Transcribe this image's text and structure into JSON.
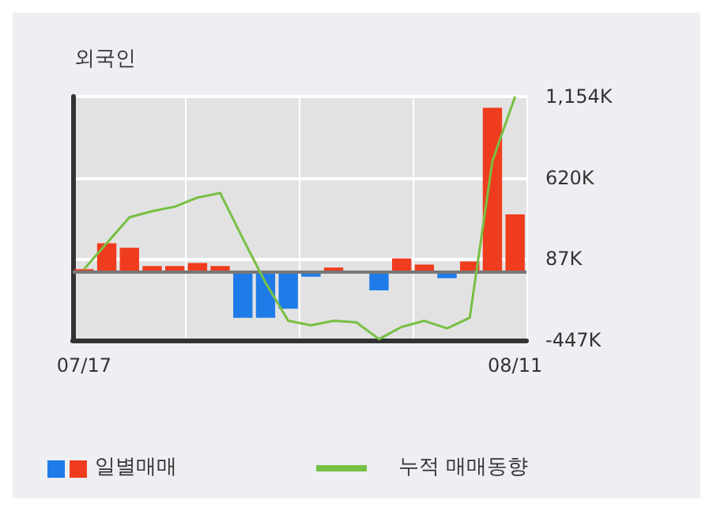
{
  "chart_data": {
    "type": "bar",
    "title": "외국인",
    "categories": [
      "07/17",
      null,
      null,
      null,
      null,
      null,
      null,
      null,
      null,
      null,
      null,
      null,
      null,
      null,
      null,
      null,
      null,
      null,
      null,
      "08/11"
    ],
    "series": [
      {
        "name": "일별매매",
        "colors": [
          "#f03c1e",
          "#f03c1e",
          "#f03c1e",
          "#f03c1e",
          "#f03c1e",
          "#f03c1e",
          "#f03c1e",
          "#1f7be8",
          "#1f7be8",
          "#1f7be8",
          "#1f7be8",
          "#f03c1e",
          "#f03c1e",
          "#1f7be8",
          "#f03c1e",
          "#f03c1e",
          "#1f7be8",
          "#f03c1e",
          "#f03c1e",
          "#f03c1e"
        ],
        "values": [
          20,
          190,
          160,
          40,
          40,
          60,
          40,
          -300,
          -300,
          -240,
          -30,
          30,
          0,
          -120,
          90,
          50,
          -40,
          70,
          1080,
          380
        ]
      },
      {
        "name": "누적 매매동향",
        "type": "line",
        "color": "#77c043",
        "values": [
          20,
          190,
          360,
          400,
          430,
          490,
          520,
          220,
          -70,
          -320,
          -350,
          -320,
          -330,
          -440,
          -360,
          -320,
          -370,
          -300,
          730,
          1154
        ]
      }
    ],
    "ylim": [
      -447,
      1154
    ],
    "yticks": [
      {
        "value": -447,
        "label": "-447K"
      },
      {
        "value": 87,
        "label": "87K"
      },
      {
        "value": 620,
        "label": "620K"
      },
      {
        "value": 1154,
        "label": "1,154K"
      }
    ],
    "grid": true,
    "legend": "bottom left",
    "marker": "none"
  }
}
